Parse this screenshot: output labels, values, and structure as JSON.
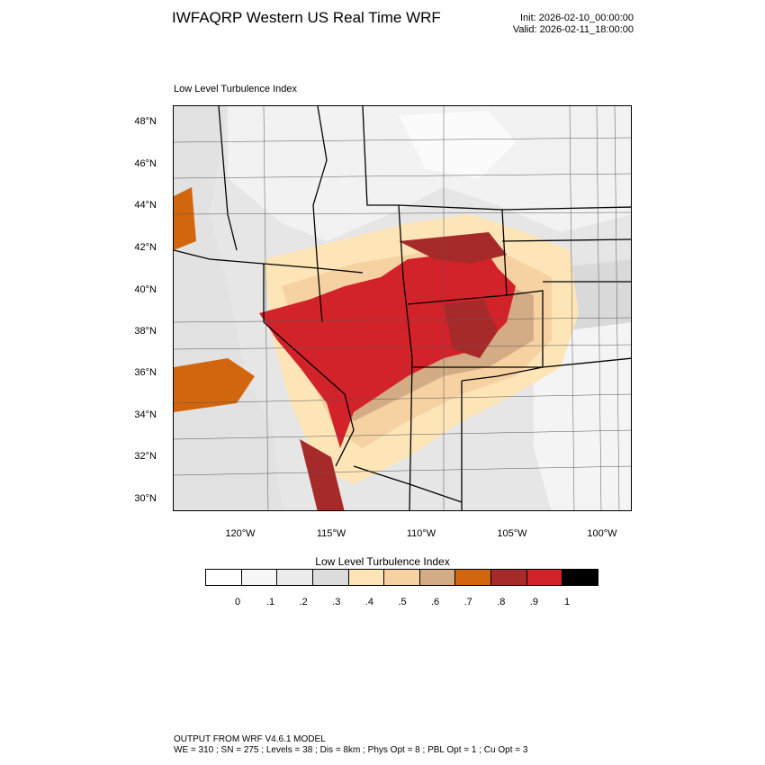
{
  "title": "IWFAQRP Western US Real Time WRF",
  "init_text": "Init: 2026-02-10_00:00:00",
  "valid_text": "Valid: 2026-02-11_18:00:00",
  "plot_subtitle": "Low Level Turbulence Index",
  "map": {
    "lat_labels": [
      "48°N",
      "46°N",
      "44°N",
      "42°N",
      "40°N",
      "38°N",
      "36°N",
      "34°N",
      "32°N",
      "30°N"
    ],
    "lon_labels": [
      "120°W",
      "115°W",
      "110°W",
      "105°W",
      "100°W"
    ]
  },
  "colorbar": {
    "title": "Low Level Turbulence Index",
    "labels": [
      "0",
      ".1",
      ".2",
      ".3",
      ".4",
      ".5",
      ".6",
      ".7",
      ".8",
      ".9",
      "1"
    ],
    "colors": [
      "#ffffff",
      "#f6f6f6",
      "#ececec",
      "#dcdcdc",
      "#fde5b8",
      "#f6d2a2",
      "#d3ac86",
      "#d2660e",
      "#a72a2a",
      "#d3232a",
      "#000000"
    ]
  },
  "footer": {
    "line1": "OUTPUT FROM WRF V4.6.1 MODEL",
    "line2": "WE = 310 ; SN = 275 ; Levels = 38 ; Dis = 8km ; Phys Opt = 8 ; PBL Opt = 1 ; Cu Opt = 3"
  }
}
